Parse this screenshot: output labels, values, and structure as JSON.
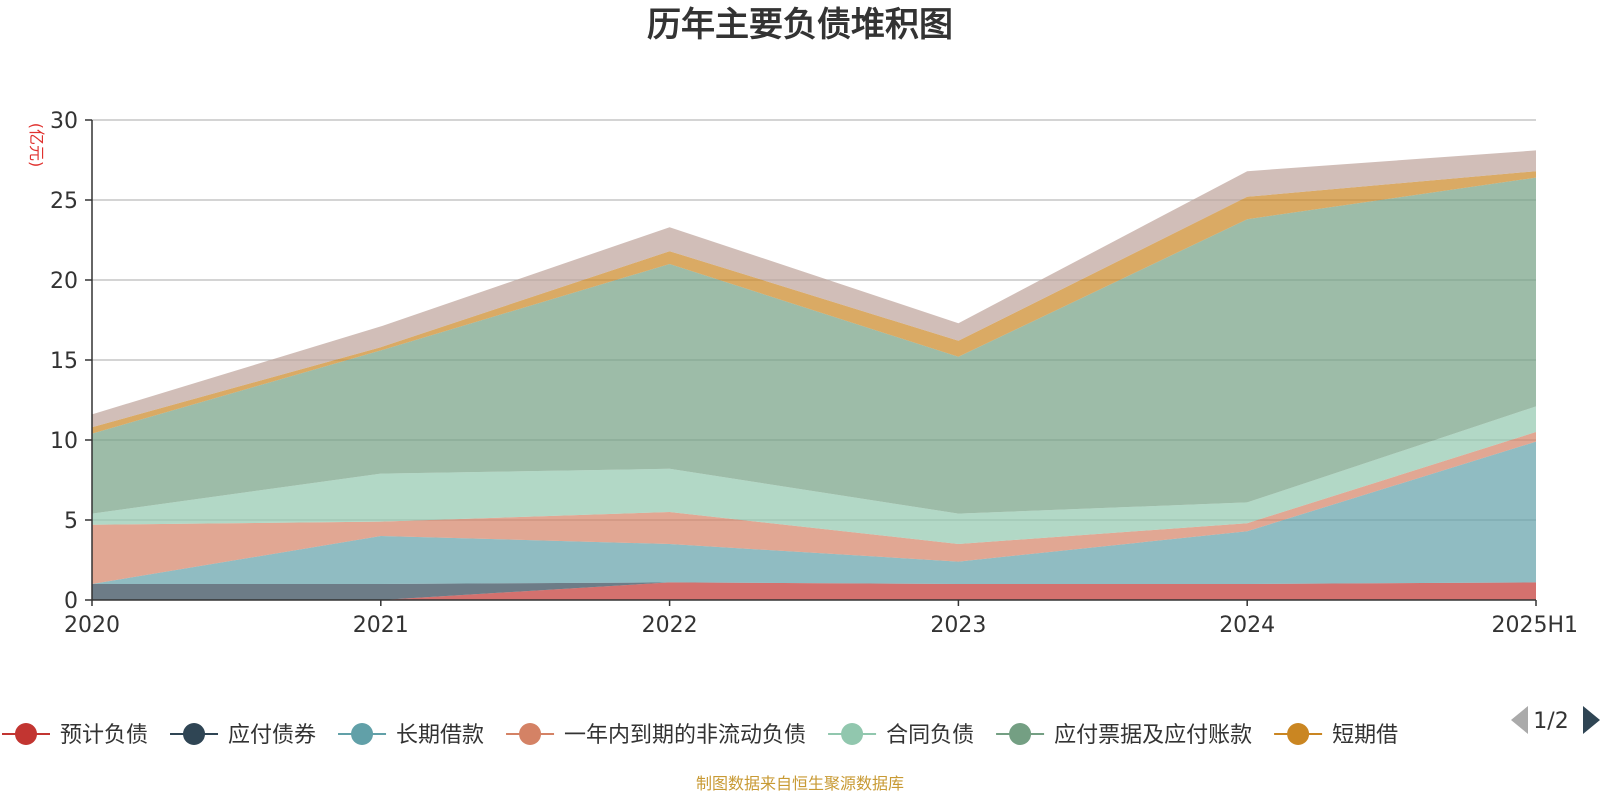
{
  "chart_data": {
    "type": "area",
    "title": "历年主要负债堆积图",
    "unit_label": "(亿元)",
    "categories": [
      "2020",
      "2021",
      "2022",
      "2023",
      "2024",
      "2025H1"
    ],
    "ylim": [
      0,
      30
    ],
    "yticks": [
      0,
      5,
      10,
      15,
      20,
      25,
      30
    ],
    "grid": true,
    "legend_position": "bottom",
    "legend_page": "1/2",
    "series": [
      {
        "name": "预计负债",
        "color": "#c23531",
        "values": [
          0.0,
          0.0,
          1.1,
          1.0,
          1.0,
          1.1
        ]
      },
      {
        "name": "应付债券",
        "color": "#2f4554",
        "values": [
          1.0,
          1.0,
          0.0,
          0.0,
          0.0,
          0.0
        ]
      },
      {
        "name": "长期借款",
        "color": "#61a0a8",
        "values": [
          0.0,
          3.0,
          2.4,
          1.4,
          3.3,
          8.8
        ]
      },
      {
        "name": "一年内到期的非流动负债",
        "color": "#d48265",
        "values": [
          3.7,
          0.9,
          2.0,
          1.1,
          0.5,
          0.6
        ]
      },
      {
        "name": "合同负债",
        "color": "#91c7ae",
        "values": [
          0.7,
          3.0,
          2.7,
          1.9,
          1.3,
          1.6
        ]
      },
      {
        "name": "应付票据及应付账款",
        "color": "#749f83",
        "values": [
          5.0,
          7.7,
          12.8,
          9.8,
          17.7,
          14.3
        ]
      },
      {
        "name": "短期借",
        "color": "#ca8622",
        "values": [
          0.4,
          0.2,
          0.8,
          1.0,
          1.4,
          0.4
        ]
      },
      {
        "name": "",
        "color": "#bda29a",
        "values": [
          0.8,
          1.3,
          1.5,
          1.1,
          1.6,
          1.3
        ]
      }
    ]
  },
  "footer": {
    "source": "制图数据来自恒生聚源数据库"
  }
}
